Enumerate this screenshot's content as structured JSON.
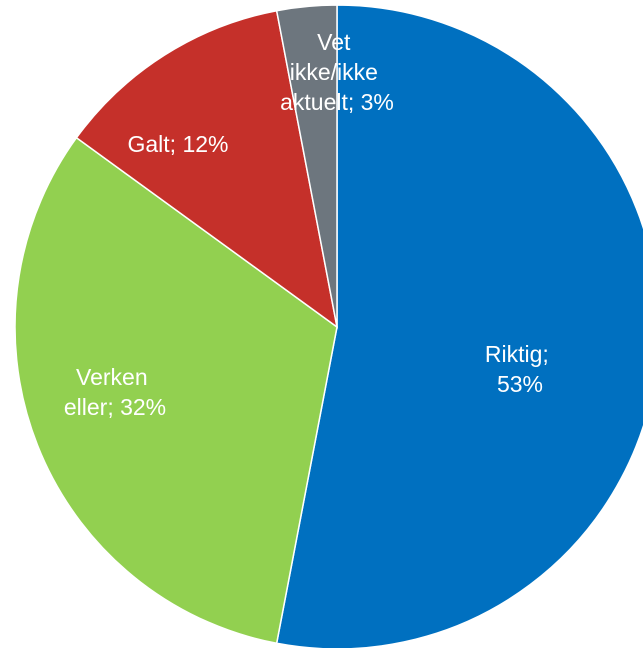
{
  "chart_data": {
    "type": "pie",
    "values": [
      53,
      32,
      12,
      3
    ],
    "value_labels": [
      "Riktig; 53%",
      "Verken eller; 32%",
      "Galt; 12%",
      "Vet ikke/ikke aktuelt; 3%"
    ],
    "colors": [
      "#0070c0",
      "#92d050",
      "#c5302a",
      "#6d767e"
    ]
  }
}
